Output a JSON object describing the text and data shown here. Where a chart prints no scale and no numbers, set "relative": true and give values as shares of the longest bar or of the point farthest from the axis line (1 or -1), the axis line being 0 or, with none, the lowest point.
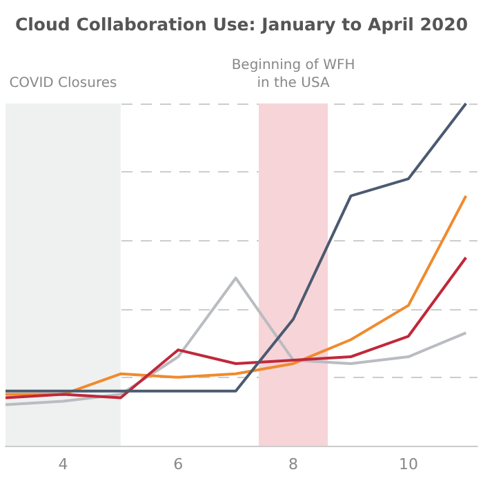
{
  "chart_data": {
    "type": "line",
    "title": "Cloud Collaboration Use: January to April 2020",
    "relative": true,
    "x": [
      3,
      4,
      5,
      6,
      7,
      8,
      9,
      10,
      11
    ],
    "xlim": [
      3,
      11.2
    ],
    "xticks": [
      4,
      6,
      8,
      10
    ],
    "grid": "y",
    "marker": "none",
    "line_style": "solid",
    "series": [
      {
        "color": "#b9bcc0",
        "values": [
          0.12,
          0.13,
          0.15,
          0.26,
          0.49,
          0.25,
          0.24,
          0.26,
          0.33
        ]
      },
      {
        "color": "#f08a2c",
        "values": [
          0.15,
          0.15,
          0.21,
          0.2,
          0.21,
          0.24,
          0.31,
          0.41,
          0.73
        ]
      },
      {
        "color": "#c0283a",
        "values": [
          0.14,
          0.15,
          0.14,
          0.28,
          0.24,
          0.25,
          0.26,
          0.32,
          0.55
        ]
      },
      {
        "color": "#4b5a70",
        "values": [
          0.16,
          0.16,
          0.16,
          0.16,
          0.16,
          0.37,
          0.73,
          0.78,
          1
        ]
      }
    ],
    "bands": [
      {
        "axis": "x",
        "from": 3,
        "to": 5,
        "label": "COVID Closures",
        "color": "#eef1f0"
      },
      {
        "axis": "x",
        "from": 7.4,
        "to": 8.6,
        "label": "Beginning of WFH\nin the USA",
        "color": "#f7d4d8"
      }
    ]
  }
}
